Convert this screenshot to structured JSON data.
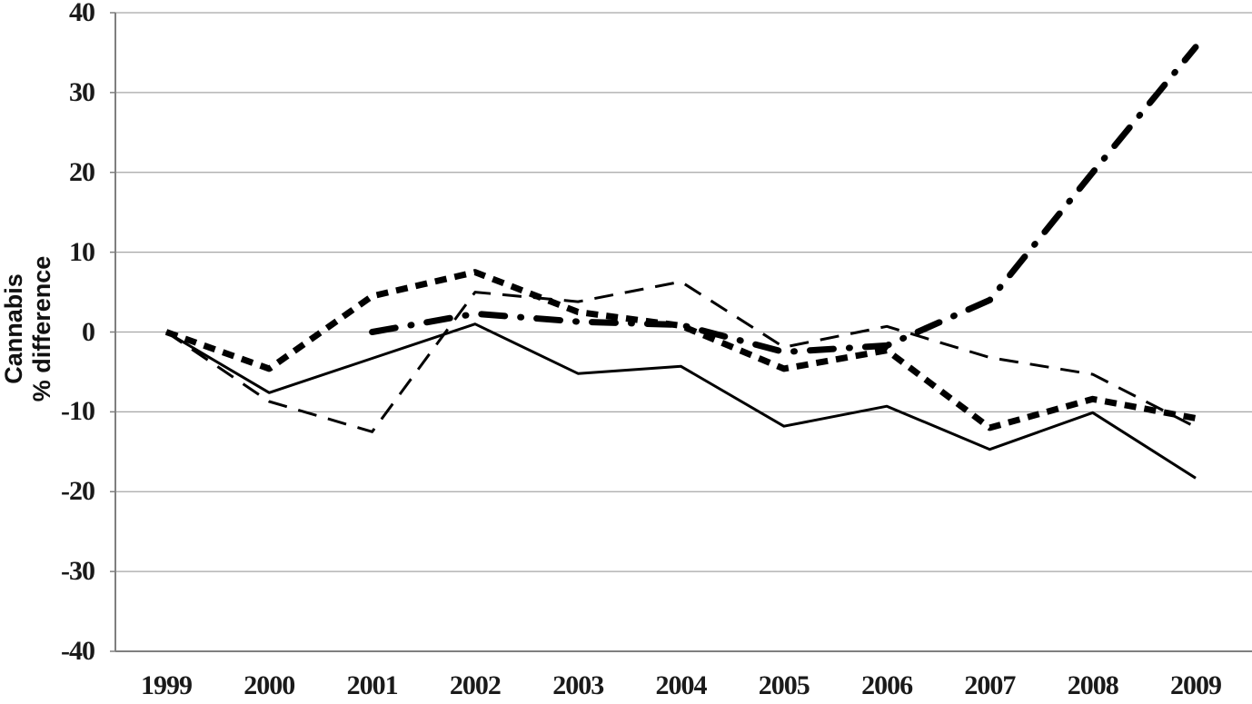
{
  "chart_data": {
    "type": "line",
    "title": "",
    "xlabel": "",
    "ylabel": "Cannabis % difference",
    "ylabel_lines": [
      "Cannabis",
      "% difference"
    ],
    "categories": [
      "1999",
      "2000",
      "2001",
      "2002",
      "2003",
      "2004",
      "2005",
      "2006",
      "2007",
      "2008",
      "2009"
    ],
    "y_ticks": [
      40,
      30,
      20,
      10,
      0,
      -10,
      -20,
      -30,
      -40
    ],
    "ylim": [
      -40,
      40
    ],
    "grid": "horizontal",
    "legend_position": "none",
    "series": [
      {
        "name": "solid thin line",
        "style": "solid",
        "stroke_width": 3,
        "values": [
          0,
          -7.6,
          -3.3,
          1.0,
          -5.2,
          -4.3,
          -11.8,
          -9.3,
          -14.7,
          -10.1,
          -18.3
        ]
      },
      {
        "name": "thin long-dash line",
        "style": "long-dash",
        "stroke_width": 3,
        "values": [
          0,
          -8.7,
          -12.5,
          5.0,
          3.8,
          6.3,
          -1.9,
          0.7,
          -3.2,
          -5.3,
          -11.9
        ]
      },
      {
        "name": "thick short-dash line",
        "style": "short-dash",
        "stroke_width": 7,
        "values": [
          0,
          -4.6,
          4.5,
          7.5,
          2.5,
          0.8,
          -4.6,
          -2.3,
          -12.0,
          -8.4,
          -10.8
        ]
      },
      {
        "name": "thick dash-dot line",
        "style": "dash-dot",
        "stroke_width": 7,
        "values": [
          null,
          null,
          0,
          2.3,
          1.3,
          0.9,
          -2.5,
          -1.7,
          4.0,
          20.0,
          35.7
        ]
      }
    ],
    "colors": {
      "line": "#000000",
      "gridline": "#a6a6a6",
      "axis": "#7f7f7f",
      "background": "#ffffff",
      "tick_text": "#1a1a1a"
    }
  }
}
